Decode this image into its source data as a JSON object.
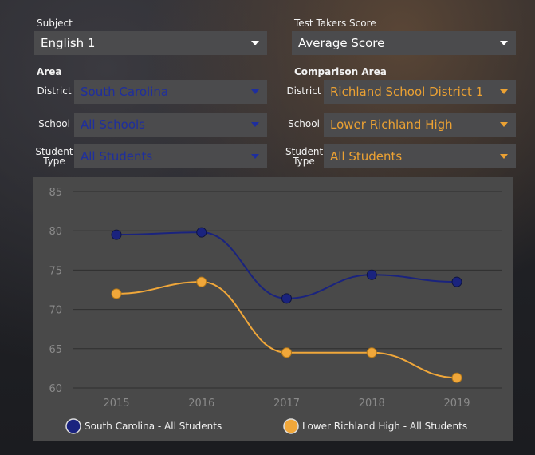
{
  "filters": {
    "subject": {
      "label": "Subject",
      "value": "English 1"
    },
    "score": {
      "label": "Test Takers Score",
      "value": "Average Score"
    },
    "area": {
      "title": "Area",
      "district": {
        "label": "District",
        "value": "South Carolina"
      },
      "school": {
        "label": "School",
        "value": "All Schools"
      },
      "student_type": {
        "label_line1": "Student",
        "label_line2": "Type",
        "value": "All Students"
      }
    },
    "comparison": {
      "title": "Comparison Area",
      "district": {
        "label": "District",
        "value": "Richland School District 1"
      },
      "school": {
        "label": "School",
        "value": "Lower Richland High"
      },
      "student_type": {
        "label_line1": "Student",
        "label_line2": "Type",
        "value": "All Students"
      }
    }
  },
  "colors": {
    "series1": "#1a237e",
    "series2": "#f0a73a",
    "panel": "#494949",
    "select_bg": "#4b4b4d"
  },
  "chart_data": {
    "type": "line",
    "x": [
      "2015",
      "2016",
      "2017",
      "2018",
      "2019"
    ],
    "ylim": [
      60,
      85
    ],
    "yticks": [
      60,
      65,
      70,
      75,
      80,
      85
    ],
    "grid": true,
    "legend_position": "bottom",
    "series": [
      {
        "name": "South Carolina - All Students",
        "values": [
          79.5,
          79.8,
          71.4,
          74.4,
          73.5
        ],
        "color": "#1a237e"
      },
      {
        "name": "Lower Richland High - All Students",
        "values": [
          72.0,
          73.5,
          64.5,
          64.5,
          61.3
        ],
        "color": "#f0a73a"
      }
    ]
  }
}
